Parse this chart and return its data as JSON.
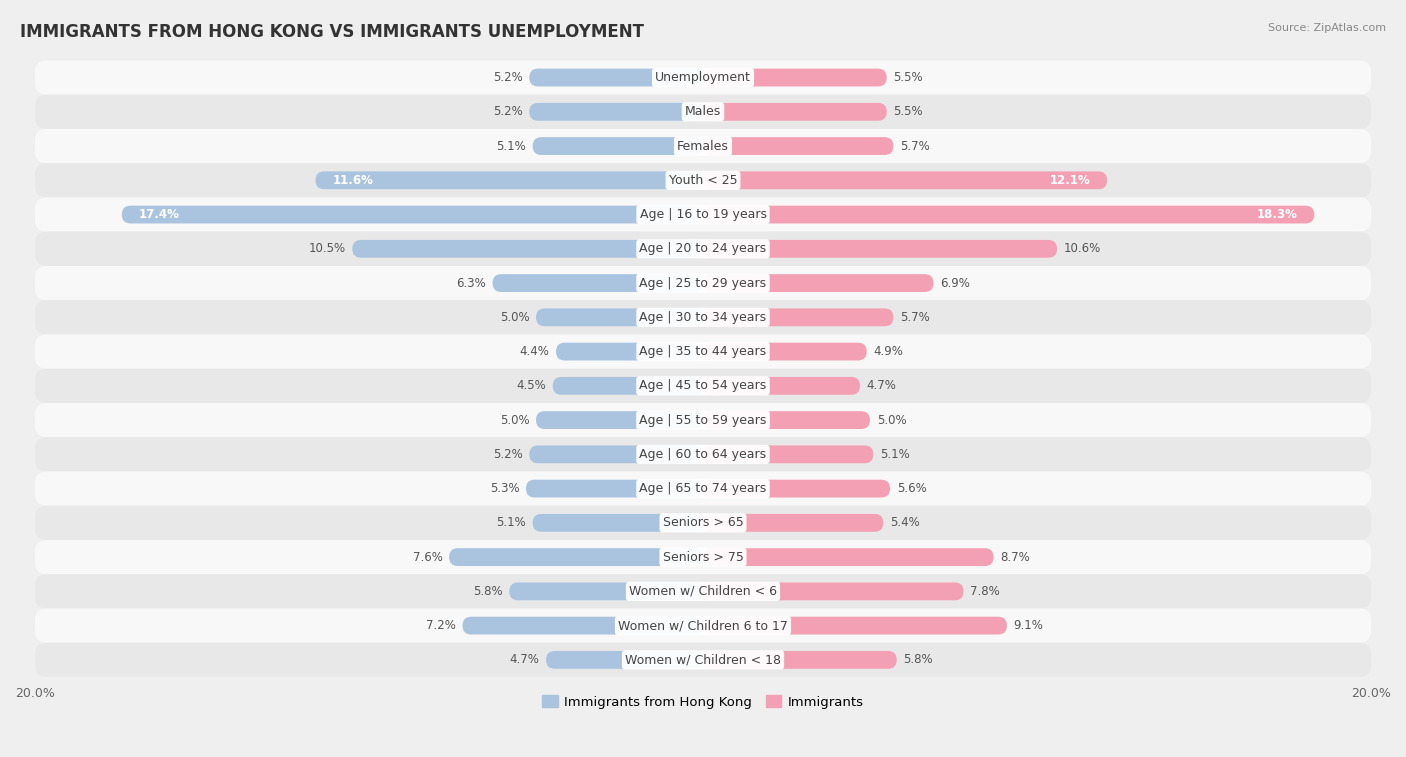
{
  "title": "IMMIGRANTS FROM HONG KONG VS IMMIGRANTS UNEMPLOYMENT",
  "source": "Source: ZipAtlas.com",
  "categories": [
    "Unemployment",
    "Males",
    "Females",
    "Youth < 25",
    "Age | 16 to 19 years",
    "Age | 20 to 24 years",
    "Age | 25 to 29 years",
    "Age | 30 to 34 years",
    "Age | 35 to 44 years",
    "Age | 45 to 54 years",
    "Age | 55 to 59 years",
    "Age | 60 to 64 years",
    "Age | 65 to 74 years",
    "Seniors > 65",
    "Seniors > 75",
    "Women w/ Children < 6",
    "Women w/ Children 6 to 17",
    "Women w/ Children < 18"
  ],
  "left_values": [
    5.2,
    5.2,
    5.1,
    11.6,
    17.4,
    10.5,
    6.3,
    5.0,
    4.4,
    4.5,
    5.0,
    5.2,
    5.3,
    5.1,
    7.6,
    5.8,
    7.2,
    4.7
  ],
  "right_values": [
    5.5,
    5.5,
    5.7,
    12.1,
    18.3,
    10.6,
    6.9,
    5.7,
    4.9,
    4.7,
    5.0,
    5.1,
    5.6,
    5.4,
    8.7,
    7.8,
    9.1,
    5.8
  ],
  "left_color": "#aac4df",
  "right_color": "#f4a0b4",
  "left_label": "Immigrants from Hong Kong",
  "right_label": "Immigrants",
  "xlim": 20.0,
  "bg_color": "#efefef",
  "row_color_odd": "#f8f8f8",
  "row_color_even": "#e8e8e8",
  "label_fontsize": 9,
  "value_fontsize": 8.5,
  "title_fontsize": 12,
  "highlight_left_color": "#5588cc",
  "highlight_right_color": "#cc3366",
  "highlight_rows": [
    3,
    4
  ]
}
